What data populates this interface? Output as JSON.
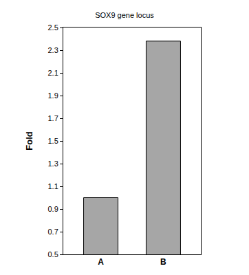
{
  "chart_data": {
    "type": "bar",
    "title": "SOX9 gene locus",
    "y_label": "Fold",
    "categories": [
      "A",
      "B"
    ],
    "values": [
      1.0,
      2.38
    ],
    "color": "#a6a6a6",
    "ylim": [
      0.5,
      2.5
    ],
    "yticks": [
      0.5,
      0.7,
      0.9,
      1.1,
      1.3,
      1.5,
      1.7,
      1.9,
      2.1,
      2.3,
      2.5
    ],
    "grid": false
  }
}
